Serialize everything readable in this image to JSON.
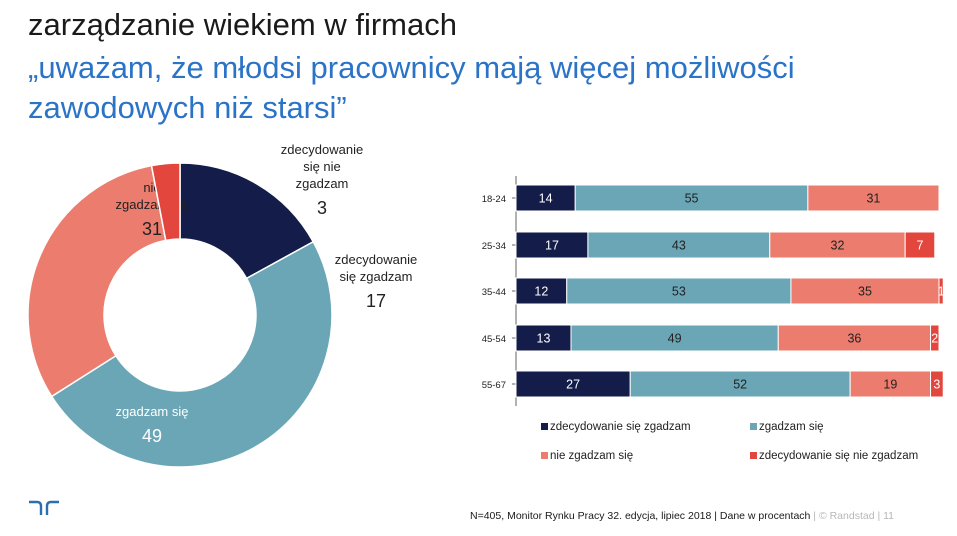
{
  "slide": {
    "title": "zarządzanie wiekiem w firmach",
    "subtitle": "„uważam, że młodsi pracownicy mają więcej możliwości zawodowych niż starsi”"
  },
  "colors": {
    "strongly_agree": "#141c4a",
    "agree": "#6aa6b6",
    "disagree": "#eb7c6e",
    "strongly_disagree": "#e2463c",
    "title": "#1a1a1a",
    "subtitle": "#2a73c7",
    "brand": "#2a6fb0"
  },
  "chart_data": [
    {
      "type": "pie",
      "donut": true,
      "slices": [
        {
          "label_lines": [
            "zdecydowanie",
            "się zgadzam"
          ],
          "value": 17
        },
        {
          "label_lines": [
            "zgadzam się"
          ],
          "value": 49
        },
        {
          "label_lines": [
            "nie",
            "zgadzam się"
          ],
          "value": 31
        },
        {
          "label_lines": [
            "zdecydowanie",
            "się nie",
            "zgadzam"
          ],
          "value": 3
        }
      ]
    },
    {
      "type": "bar",
      "orientation": "horizontal",
      "stacked": true,
      "categories": [
        "18-24",
        "25-34",
        "35-44",
        "45-54",
        "55-67"
      ],
      "series": [
        {
          "name": "zdecydowanie się zgadzam",
          "values": [
            14,
            17,
            12,
            13,
            27
          ]
        },
        {
          "name": "zgadzam się",
          "values": [
            55,
            43,
            53,
            49,
            52
          ]
        },
        {
          "name": "nie zgadzam się",
          "values": [
            31,
            32,
            35,
            36,
            19
          ]
        },
        {
          "name": "zdecydowanie się nie zgadzam",
          "values": [
            null,
            7,
            1,
            2,
            3
          ]
        }
      ],
      "legend_position": "bottom"
    }
  ],
  "footer": {
    "source": "N=405, Monitor Rynku Pracy 32. edycja, lipiec 2018 | Dane w procentach",
    "brand": "| © Randstad",
    "page": "|   11"
  }
}
